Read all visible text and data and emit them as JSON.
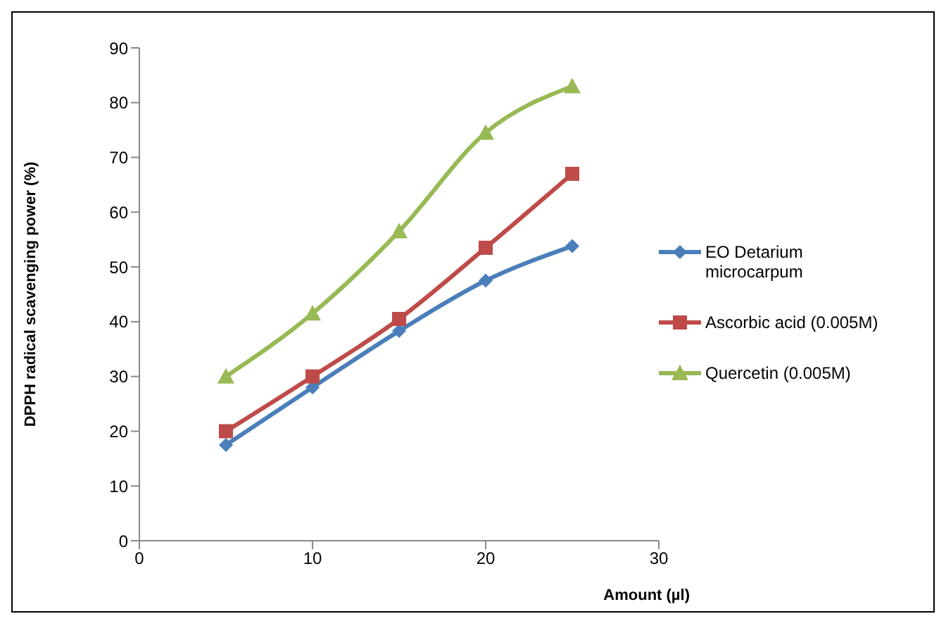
{
  "chart_data": {
    "type": "line",
    "xlabel": "Amount (µl)",
    "ylabel": "DPPH radical scavenging power (%)",
    "x": [
      5,
      10,
      15,
      20,
      25
    ],
    "xlim": [
      0,
      30
    ],
    "xticks": [
      0,
      10,
      20,
      30
    ],
    "ylim": [
      0,
      90
    ],
    "yticks": [
      0,
      10,
      20,
      30,
      40,
      50,
      60,
      70,
      80,
      90
    ],
    "grid": false,
    "legend": "right",
    "series": [
      {
        "name": "EO Detarium microcarpum",
        "color": "#4a7ebb",
        "marker": "diamond",
        "values": [
          17.5,
          28,
          38.3,
          47.5,
          53.8
        ]
      },
      {
        "name": "Ascorbic acid (0.005M)",
        "color": "#be4b48",
        "marker": "square",
        "values": [
          20,
          30,
          40.5,
          53.5,
          67
        ]
      },
      {
        "name": "Quercetin (0.005M)",
        "color": "#98b954",
        "marker": "triangle",
        "values": [
          30,
          41.5,
          56.5,
          74.5,
          83
        ]
      }
    ]
  }
}
